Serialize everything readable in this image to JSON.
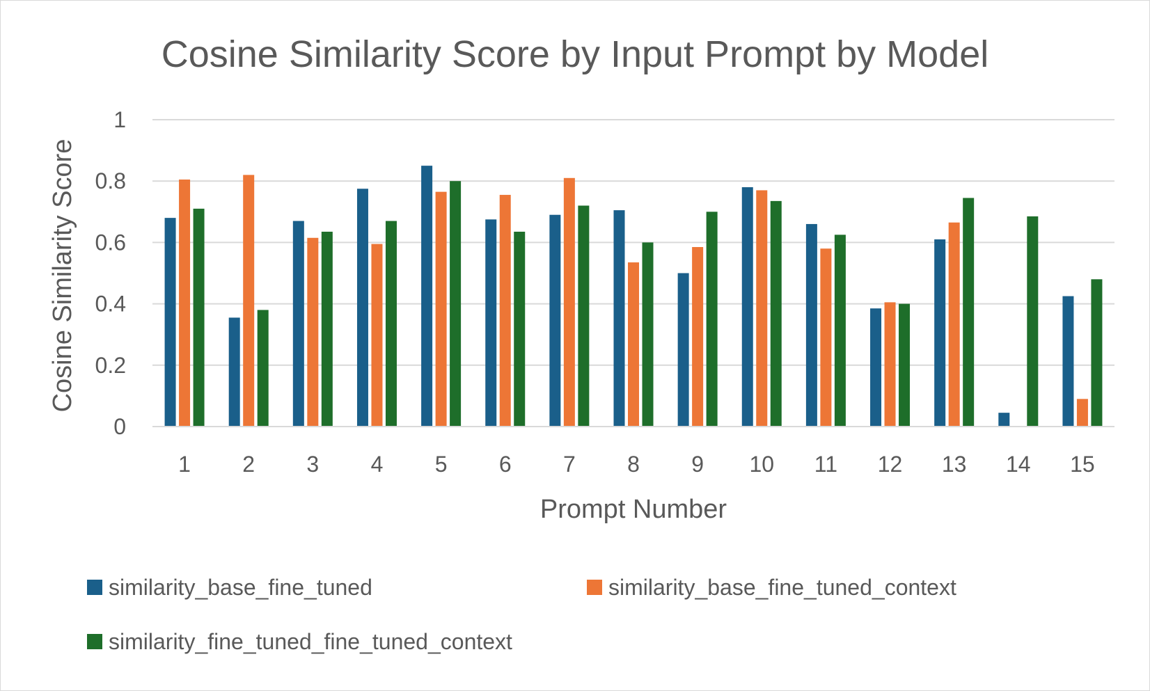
{
  "chart_data": {
    "type": "bar",
    "title": "Cosine Similarity Score by Input Prompt by Model",
    "xlabel": "Prompt Number",
    "ylabel": "Cosine Similarity Score",
    "ylim": [
      0,
      1
    ],
    "yticks": [
      "0",
      "0.2",
      "0.4",
      "0.6",
      "0.8",
      "1"
    ],
    "grid": true,
    "legend_position": "bottom",
    "categories": [
      "1",
      "2",
      "3",
      "4",
      "5",
      "6",
      "7",
      "8",
      "9",
      "10",
      "11",
      "12",
      "13",
      "14",
      "15"
    ],
    "series": [
      {
        "name": "similarity_base_fine_tuned",
        "color": "#1a5f8a",
        "values": [
          0.68,
          0.355,
          0.67,
          0.775,
          0.85,
          0.675,
          0.69,
          0.705,
          0.5,
          0.78,
          0.66,
          0.385,
          0.61,
          0.045,
          0.425
        ]
      },
      {
        "name": "similarity_base_fine_tuned_context",
        "color": "#ed7636",
        "values": [
          0.805,
          0.82,
          0.615,
          0.595,
          0.765,
          0.755,
          0.81,
          0.535,
          0.585,
          0.77,
          0.58,
          0.405,
          0.665,
          0.0,
          0.09
        ]
      },
      {
        "name": "similarity_fine_tuned_fine_tuned_context",
        "color": "#1e6e2a",
        "values": [
          0.71,
          0.38,
          0.635,
          0.67,
          0.8,
          0.635,
          0.72,
          0.6,
          0.7,
          0.735,
          0.625,
          0.4,
          0.745,
          0.685,
          0.48
        ]
      }
    ]
  }
}
